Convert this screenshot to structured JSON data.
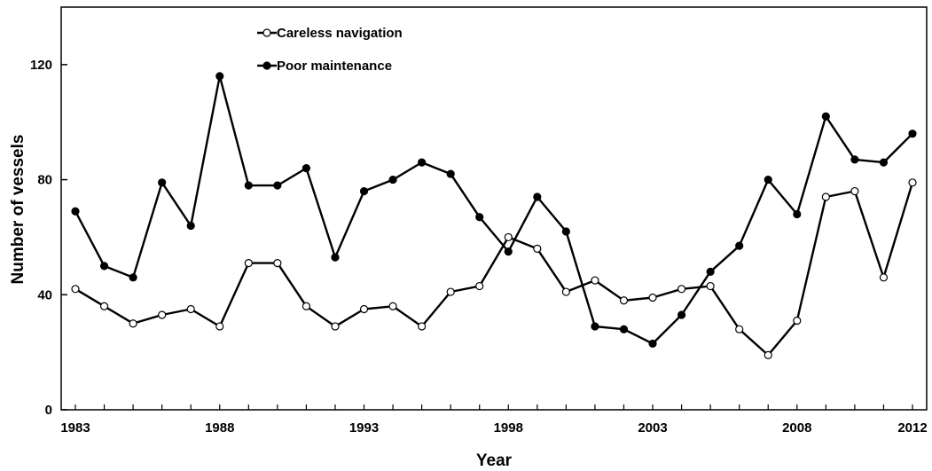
{
  "chart_data": {
    "type": "line",
    "title": "",
    "xlabel": "Year",
    "ylabel": "Number of vessels",
    "xlim": [
      1983,
      2012
    ],
    "ylim": [
      0,
      140
    ],
    "x_tick_labels": [
      "1983",
      "1988",
      "1993",
      "1998",
      "2003",
      "2008",
      "2012"
    ],
    "y_tick_labels": [
      "0",
      "40",
      "80",
      "120"
    ],
    "grid": false,
    "legend_position": "top-left",
    "x": [
      1983,
      1984,
      1985,
      1986,
      1987,
      1988,
      1989,
      1990,
      1991,
      1992,
      1993,
      1994,
      1995,
      1996,
      1997,
      1998,
      1999,
      2000,
      2001,
      2002,
      2003,
      2004,
      2005,
      2006,
      2007,
      2008,
      2009,
      2010,
      2011,
      2012
    ],
    "series": [
      {
        "name": "Careless navigation",
        "marker": "open-circle",
        "color": "#000000",
        "values": [
          42,
          36,
          30,
          33,
          35,
          29,
          51,
          51,
          36,
          29,
          35,
          36,
          29,
          41,
          43,
          60,
          56,
          41,
          45,
          38,
          39,
          42,
          43,
          28,
          19,
          31,
          74,
          76,
          46,
          79
        ]
      },
      {
        "name": "Poor maintenance",
        "marker": "filled-circle",
        "color": "#000000",
        "values": [
          69,
          50,
          46,
          79,
          64,
          116,
          78,
          78,
          84,
          53,
          76,
          80,
          86,
          82,
          67,
          55,
          74,
          62,
          29,
          28,
          23,
          33,
          48,
          57,
          80,
          68,
          102,
          87,
          86,
          96
        ]
      }
    ]
  }
}
